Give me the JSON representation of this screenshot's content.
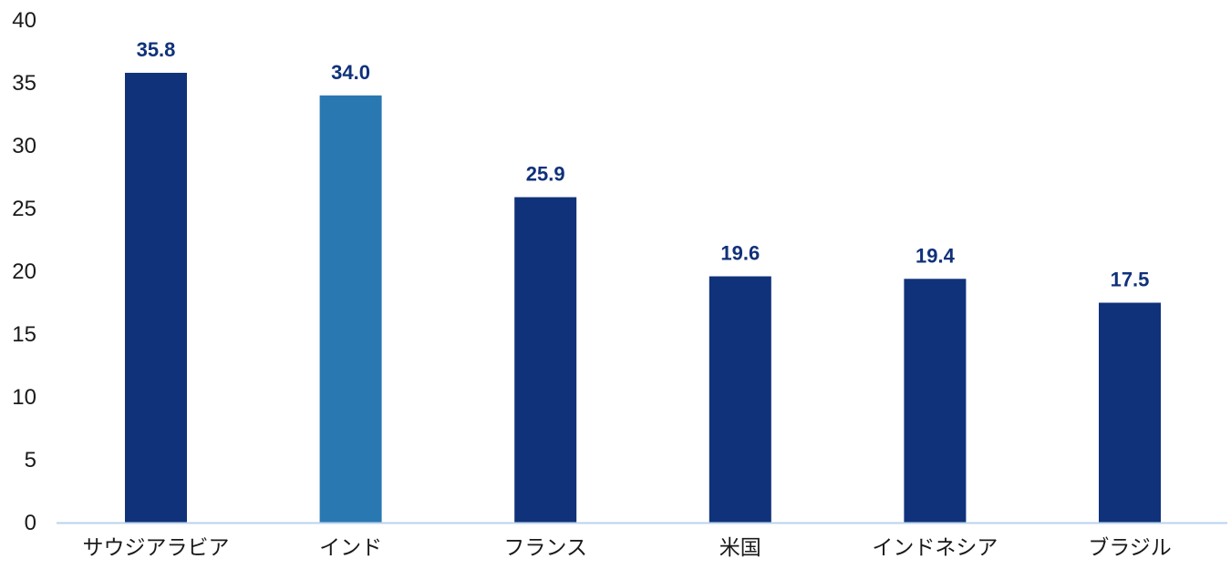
{
  "chart_data": {
    "type": "bar",
    "title": "",
    "xlabel": "",
    "ylabel": "",
    "ylim": [
      0,
      40
    ],
    "yticks": [
      "0",
      "5",
      "10",
      "15",
      "20",
      "25",
      "30",
      "35",
      "40"
    ],
    "categories": [
      "サウジアラビア",
      "インド",
      "フランス",
      "米国",
      "インドネシア",
      "ブラジル"
    ],
    "values": [
      35.8,
      34.0,
      25.9,
      19.6,
      19.4,
      17.5
    ],
    "value_labels": [
      "35.8",
      "34.0",
      "25.9",
      "19.6",
      "19.4",
      "17.5"
    ],
    "highlight_index": 1,
    "grid": false,
    "colors": {
      "bar": "#10327a",
      "highlight": "#2a78b2",
      "axis": "#b9d3ec",
      "data_label": "#10317a"
    }
  }
}
